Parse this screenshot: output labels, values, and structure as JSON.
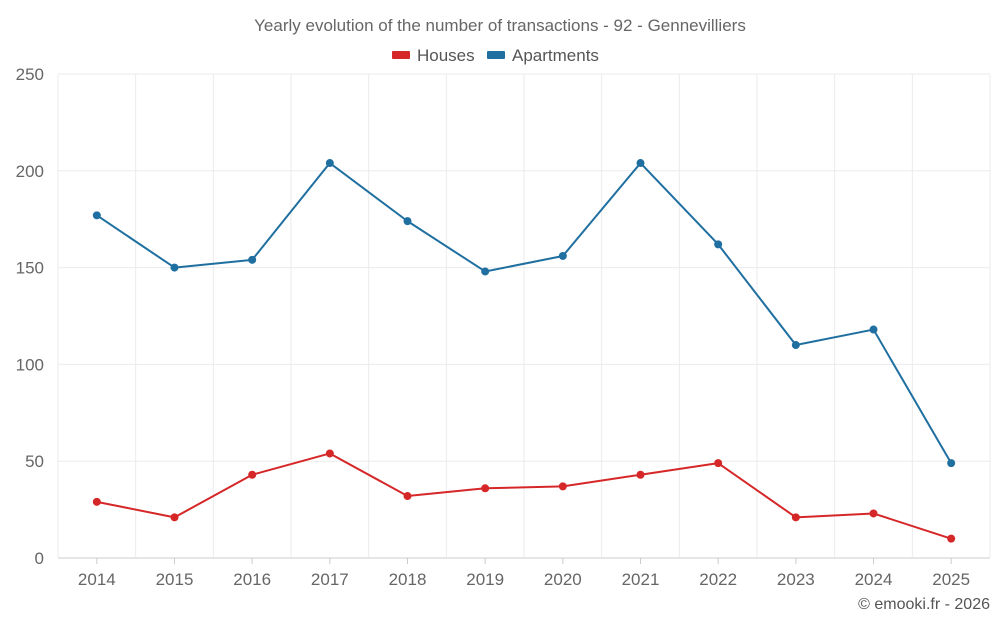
{
  "chart_data": {
    "type": "line",
    "title": "Yearly evolution of the number of transactions - 92 - Gennevilliers",
    "categories": [
      "2014",
      "2015",
      "2016",
      "2017",
      "2018",
      "2019",
      "2020",
      "2021",
      "2022",
      "2023",
      "2024",
      "2025"
    ],
    "series": [
      {
        "name": "Houses",
        "color": "#d62728",
        "values": [
          29,
          21,
          43,
          54,
          32,
          36,
          37,
          43,
          49,
          21,
          23,
          10
        ]
      },
      {
        "name": "Apartments",
        "color": "#1f6fa0",
        "values": [
          177,
          150,
          154,
          204,
          174,
          148,
          156,
          204,
          162,
          110,
          118,
          49
        ]
      }
    ],
    "ylim": [
      0,
      250
    ],
    "yticks": [
      "0",
      "50",
      "100",
      "150",
      "200",
      "250"
    ],
    "grid": true,
    "legend_position": "top-center",
    "xlabel": "",
    "ylabel": ""
  },
  "credit": "© emooki.fr - 2026"
}
